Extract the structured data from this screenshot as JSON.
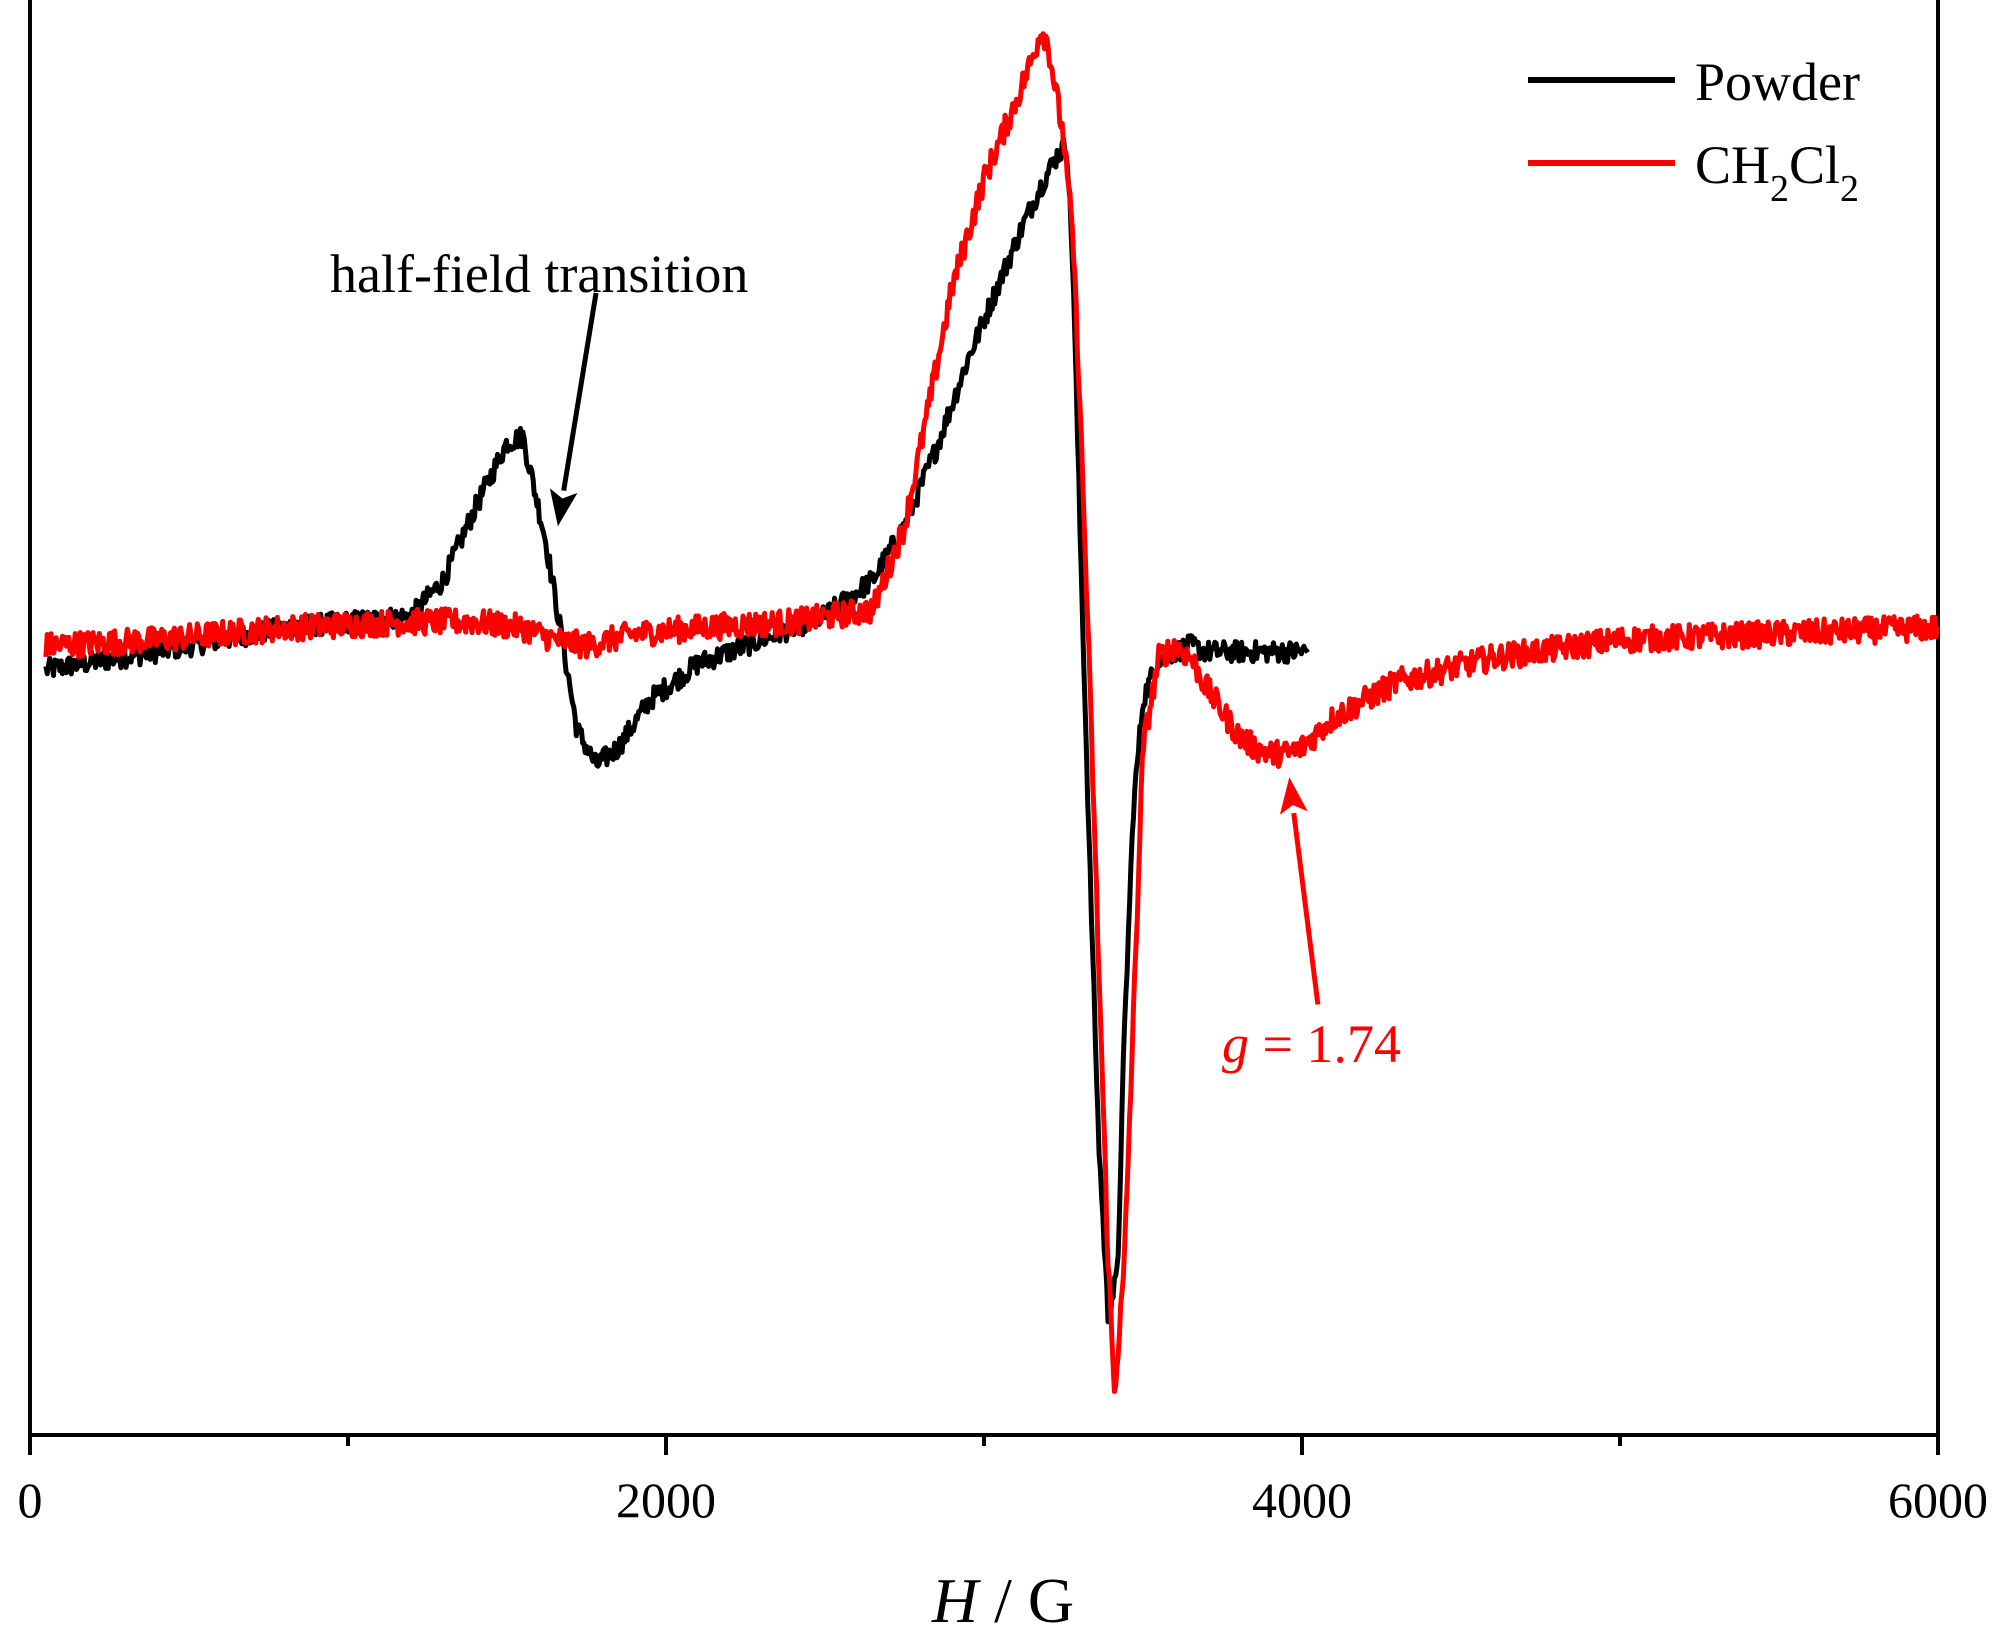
{
  "chart_data": {
    "type": "line",
    "title": "",
    "xlabel_italic": "H",
    "xlabel_rest": " / G",
    "ylabel": "",
    "xlim": [
      0,
      6000
    ],
    "ylim": [
      -1.35,
      1.05
    ],
    "x_major_ticks": [
      0,
      2000,
      4000,
      6000
    ],
    "x_tick_labels": [
      "0",
      "2000",
      "4000",
      "6000"
    ],
    "x_minor_ticks": [
      1000,
      3000,
      5000
    ],
    "legend_position": "top-right",
    "legend_entries": [
      {
        "name": "Powder",
        "color": "#000000"
      },
      {
        "name": "CH2Cl2",
        "color": "#ff0000"
      }
    ],
    "legend_ch2cl2": {
      "p1": "CH",
      "s1": "2",
      "p2": "Cl",
      "s2": "2"
    },
    "series": [
      {
        "name": "Powder",
        "color": "#000000",
        "noise": 0.018,
        "x": [
          50,
          400,
          800,
          1200,
          1300,
          1400,
          1500,
          1550,
          1620,
          1680,
          1720,
          1780,
          1850,
          1950,
          2100,
          2300,
          2500,
          2650,
          2750,
          2850,
          2950,
          3050,
          3120,
          3180,
          3230,
          3260,
          3280,
          3300,
          3330,
          3360,
          3390,
          3420,
          3440,
          3470,
          3500,
          3550,
          3600,
          3650,
          3700,
          3800,
          3900,
          4020
        ],
        "y": [
          -0.07,
          -0.04,
          0.0,
          0.02,
          0.08,
          0.2,
          0.31,
          0.32,
          0.15,
          -0.04,
          -0.17,
          -0.23,
          -0.2,
          -0.12,
          -0.06,
          -0.02,
          0.02,
          0.08,
          0.17,
          0.3,
          0.45,
          0.58,
          0.67,
          0.74,
          0.79,
          0.81,
          0.6,
          0.2,
          -0.35,
          -0.85,
          -1.15,
          -1.08,
          -0.7,
          -0.3,
          -0.12,
          -0.05,
          -0.04,
          -0.03,
          -0.04,
          -0.04,
          -0.04,
          -0.04
        ]
      },
      {
        "name": "CH2Cl2",
        "color": "#ff0000",
        "noise": 0.022,
        "x": [
          50,
          400,
          800,
          1200,
          1400,
          1550,
          1650,
          1750,
          1900,
          2100,
          2400,
          2650,
          2750,
          2800,
          2900,
          3000,
          3100,
          3150,
          3180,
          3200,
          3250,
          3280,
          3300,
          3330,
          3360,
          3390,
          3410,
          3440,
          3470,
          3500,
          3550,
          3600,
          3650,
          3700,
          3750,
          3800,
          3850,
          3900,
          3960,
          4000,
          4100,
          4300,
          4600,
          5000,
          5500,
          6000
        ],
        "y": [
          -0.03,
          -0.02,
          0.0,
          0.01,
          0.01,
          0.0,
          -0.02,
          -0.03,
          -0.01,
          0.0,
          0.01,
          0.03,
          0.17,
          0.3,
          0.57,
          0.75,
          0.88,
          0.95,
          1.0,
          0.98,
          0.82,
          0.65,
          0.4,
          -0.05,
          -0.55,
          -1.05,
          -1.28,
          -1.08,
          -0.65,
          -0.2,
          -0.05,
          -0.03,
          -0.05,
          -0.1,
          -0.14,
          -0.18,
          -0.2,
          -0.21,
          -0.21,
          -0.2,
          -0.15,
          -0.09,
          -0.05,
          -0.02,
          -0.01,
          0.0
        ]
      }
    ],
    "annotations": {
      "half_field": {
        "text": "half-field transition",
        "color": "#000000",
        "arrow_from_x": 1780,
        "arrow_from_y": 0.56,
        "arrow_to_x": 1660,
        "arrow_to_y": 0.17
      },
      "g_value": {
        "italic": "g",
        "rest": " = 1.74",
        "color": "#ff0000",
        "arrow_from_x": 4050,
        "arrow_from_y": -0.63,
        "arrow_to_x": 3960,
        "arrow_to_y": -0.25
      }
    }
  }
}
